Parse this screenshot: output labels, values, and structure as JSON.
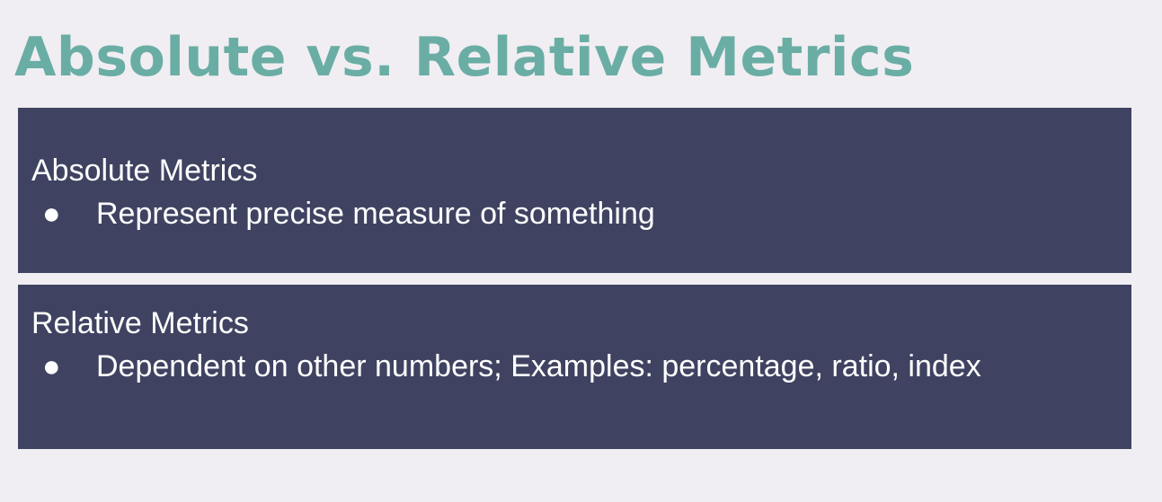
{
  "slide": {
    "title": "Absolute vs. Relative Metrics"
  },
  "panels": [
    {
      "heading": "Absolute Metrics",
      "bullets": [
        {
          "marker": "●",
          "text": "Represent precise measure of something"
        }
      ]
    },
    {
      "heading": "Relative Metrics",
      "bullets": [
        {
          "marker": "●",
          "text": "Dependent on other numbers; Examples: percentage, ratio, index"
        }
      ]
    }
  ],
  "colors": {
    "background": "#f0eef2",
    "title": "#6aada4",
    "panel": "#3f4361",
    "panel_text": "#ffffff"
  }
}
